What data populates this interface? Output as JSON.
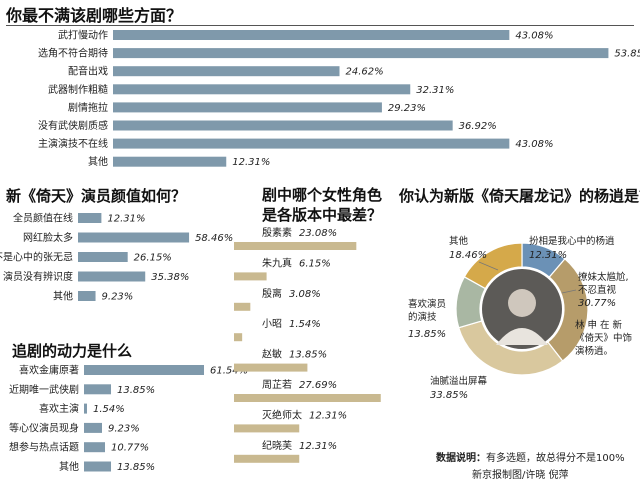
{
  "chart_data": [
    {
      "type": "bar",
      "title": "你最不满该剧哪些方面？",
      "categories": [
        "武打慢动作",
        "选角不符合期待",
        "配音出戏",
        "武器制作粗糙",
        "剧情拖拉",
        "没有武侠剧质感",
        "主演演技不在线",
        "其他"
      ],
      "values": [
        43.08,
        53.85,
        24.62,
        32.31,
        29.23,
        36.92,
        43.08,
        12.31
      ],
      "labels": [
        "43.08%",
        "53.85%",
        "24.62%",
        "32.31%",
        "29.23%",
        "36.92%",
        "43.08%",
        "12.31%"
      ],
      "color": "#7f99ab"
    },
    {
      "type": "bar",
      "title": "新《倚天》演员颜值如何？",
      "categories": [
        "全员颜值在线",
        "网红脸太多",
        "不是心中的张无忌",
        "演员没有辨识度",
        "其他"
      ],
      "values": [
        12.31,
        58.46,
        26.15,
        35.38,
        9.23
      ],
      "labels": [
        "12.31%",
        "58.46%",
        "26.15%",
        "35.38%",
        "9.23%"
      ],
      "color": "#7f99ab"
    },
    {
      "type": "bar",
      "title": "追剧的动力是什么",
      "categories": [
        "喜欢金庸原著",
        "近期唯一武侠剧",
        "喜欢主演",
        "等心仪演员现身",
        "想参与热点话题",
        "其他"
      ],
      "values": [
        61.54,
        13.85,
        1.54,
        9.23,
        10.77,
        13.85
      ],
      "labels": [
        "61.54%",
        "13.85%",
        "1.54%",
        "9.23%",
        "10.77%",
        "13.85%"
      ],
      "color": "#7f99ab"
    },
    {
      "type": "bar",
      "title": "剧中哪个女性角色是各版本中最差？",
      "categories": [
        "殷素素",
        "朱九真",
        "殷离",
        "小昭",
        "赵敏",
        "周芷若",
        "灭绝师太",
        "纪晓芙"
      ],
      "values": [
        23.08,
        6.15,
        3.08,
        1.54,
        13.85,
        27.69,
        12.31,
        12.31
      ],
      "labels": [
        "23.08%",
        "6.15%",
        "3.08%",
        "1.54%",
        "13.85%",
        "27.69%",
        "12.31%",
        "12.31%"
      ],
      "color": "#c9b990"
    },
    {
      "type": "pie",
      "title": "你认为新版《倚天屠龙记》的杨逍是？",
      "categories": [
        "扮相是我心中的杨逍",
        "撩妹太尴尬，不忍直视",
        "林申在新《倚天》中饰演杨逍。",
        "油腻溢出屏幕",
        "喜欢演员的演技",
        "其他"
      ],
      "values": [
        12.31,
        30.77,
        0,
        33.85,
        13.85,
        18.46
      ],
      "labels": [
        "12.31%",
        "30.77%",
        "",
        "33.85%",
        "13.85%",
        "18.46%"
      ],
      "colors": [
        "#6b91b6",
        "#b69c6a",
        "#b69c6a",
        "#d9c89e",
        "#a9b7a3",
        "#d5a94a"
      ]
    }
  ],
  "titles": {
    "q1": "你最不满该剧哪些方面？",
    "q2": "新《倚天》演员颜值如何？",
    "q3": "追剧的动力是什么",
    "q4a": "剧中哪个女性角色",
    "q4b": "是各版本中最差？",
    "q5": "你认为新版《倚天屠龙记》的杨逍是？"
  },
  "pie_labels": {
    "other": "其他",
    "other_pct": "18.46%",
    "seg1": "扮相是我心中的杨逍",
    "seg1_pct": "12.31%",
    "seg2a": "撩妹太尴尬,",
    "seg2b": "不忍直视",
    "seg2_pct": "30.77%",
    "cap1": "林 申 在 新",
    "cap2": "《倚天》中饰",
    "cap3": "演杨逍。",
    "seg4": "油腻溢出屏幕",
    "seg4_pct": "33.85%",
    "seg5a": "喜欢演员",
    "seg5b": "的演技",
    "seg5_pct": "13.85%"
  },
  "footer": {
    "note_label": "数据说明：",
    "note_text": "有多选题，故总得分不是100%",
    "credit": "新京报制图/许晓  倪萍"
  }
}
